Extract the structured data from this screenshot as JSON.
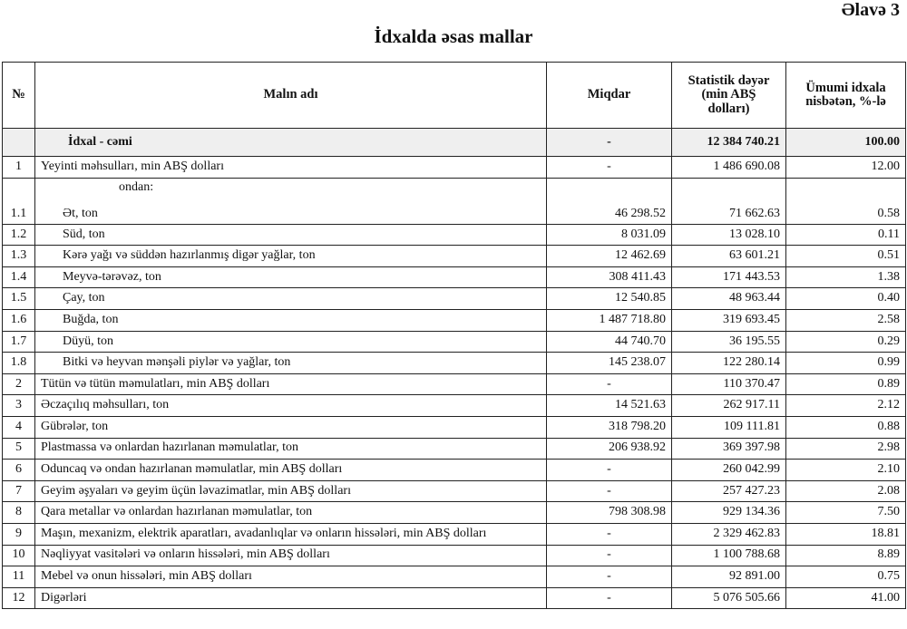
{
  "appendix_label": "Əlavə 3",
  "title": "İdxalda əsas mallar",
  "columns": [
    "№",
    "Malın adı",
    "Miqdar",
    "Statistik dəyər (min ABŞ dolları)",
    "Ümumi idxala nisbətən, %-lə"
  ],
  "total": {
    "no": "",
    "name": "İdxal - cəmi",
    "qty": "-",
    "value": "12 384 740.21",
    "pct": "100.00"
  },
  "subheading": "ondan:",
  "rows": [
    {
      "no": "1",
      "name": "Yeyinti məhsulları, min ABŞ dolları",
      "qty": "-",
      "value": "1 486 690.08",
      "pct": "12.00",
      "sub": false
    },
    {
      "no": "1.1",
      "name": "Ət, ton",
      "qty": "46 298.52",
      "value": "71 662.63",
      "pct": "0.58",
      "sub": true
    },
    {
      "no": "1.2",
      "name": "Süd, ton",
      "qty": "8 031.09",
      "value": "13 028.10",
      "pct": "0.11",
      "sub": true
    },
    {
      "no": "1.3",
      "name": "Kərə yağı və süddən hazırlanmış digər yağlar, ton",
      "qty": "12 462.69",
      "value": "63 601.21",
      "pct": "0.51",
      "sub": true
    },
    {
      "no": "1.4",
      "name": "Meyvə-tərəvəz, ton",
      "qty": "308 411.43",
      "value": "171 443.53",
      "pct": "1.38",
      "sub": true
    },
    {
      "no": "1.5",
      "name": "Çay, ton",
      "qty": "12 540.85",
      "value": "48 963.44",
      "pct": "0.40",
      "sub": true
    },
    {
      "no": "1.6",
      "name": "Buğda, ton",
      "qty": "1 487 718.80",
      "value": "319 693.45",
      "pct": "2.58",
      "sub": true
    },
    {
      "no": "1.7",
      "name": "Düyü, ton",
      "qty": "44 740.70",
      "value": "36 195.55",
      "pct": "0.29",
      "sub": true
    },
    {
      "no": "1.8",
      "name": "Bitki və heyvan mənşəli piylər və yağlar, ton",
      "qty": "145 238.07",
      "value": "122 280.14",
      "pct": "0.99",
      "sub": true
    },
    {
      "no": "2",
      "name": "Tütün və tütün məmulatları, min ABŞ dolları",
      "qty": "-",
      "value": "110 370.47",
      "pct": "0.89",
      "sub": false
    },
    {
      "no": "3",
      "name": "Əczaçılıq məhsulları, ton",
      "qty": "14 521.63",
      "value": "262 917.11",
      "pct": "2.12",
      "sub": false
    },
    {
      "no": "4",
      "name": "Gübrələr, ton",
      "qty": "318 798.20",
      "value": "109 111.81",
      "pct": "0.88",
      "sub": false
    },
    {
      "no": "5",
      "name": "Plastmassa və onlardan hazırlanan məmulatlar, ton",
      "qty": "206 938.92",
      "value": "369 397.98",
      "pct": "2.98",
      "sub": false
    },
    {
      "no": "6",
      "name": "Oduncaq və ondan hazırlanan məmulatlar, min ABŞ dolları",
      "qty": "-",
      "value": "260 042.99",
      "pct": "2.10",
      "sub": false
    },
    {
      "no": "7",
      "name": "Geyim əşyaları və geyim üçün ləvazimatlar, min ABŞ dolları",
      "qty": "-",
      "value": "257 427.23",
      "pct": "2.08",
      "sub": false
    },
    {
      "no": "8",
      "name": "Qara metallar və onlardan hazırlanan məmulatlar, ton",
      "qty": "798 308.98",
      "value": "929 134.36",
      "pct": "7.50",
      "sub": false
    },
    {
      "no": "9",
      "name": "Maşın, mexanizm, elektrik aparatları, avadanlıqlar və onların hissələri, min ABŞ dolları",
      "qty": "-",
      "value": "2 329 462.83",
      "pct": "18.81",
      "sub": false
    },
    {
      "no": "10",
      "name": "Nəqliyyat vasitələri və onların hissələri, min ABŞ dolları",
      "qty": "-",
      "value": "1 100 788.68",
      "pct": "8.89",
      "sub": false
    },
    {
      "no": "11",
      "name": "Mebel və onun hissələri, min ABŞ dolları",
      "qty": "-",
      "value": "92 891.00",
      "pct": "0.75",
      "sub": false
    },
    {
      "no": "12",
      "name": "Digərləri",
      "qty": "-",
      "value": "5 076 505.66",
      "pct": "41.00",
      "sub": false
    }
  ]
}
